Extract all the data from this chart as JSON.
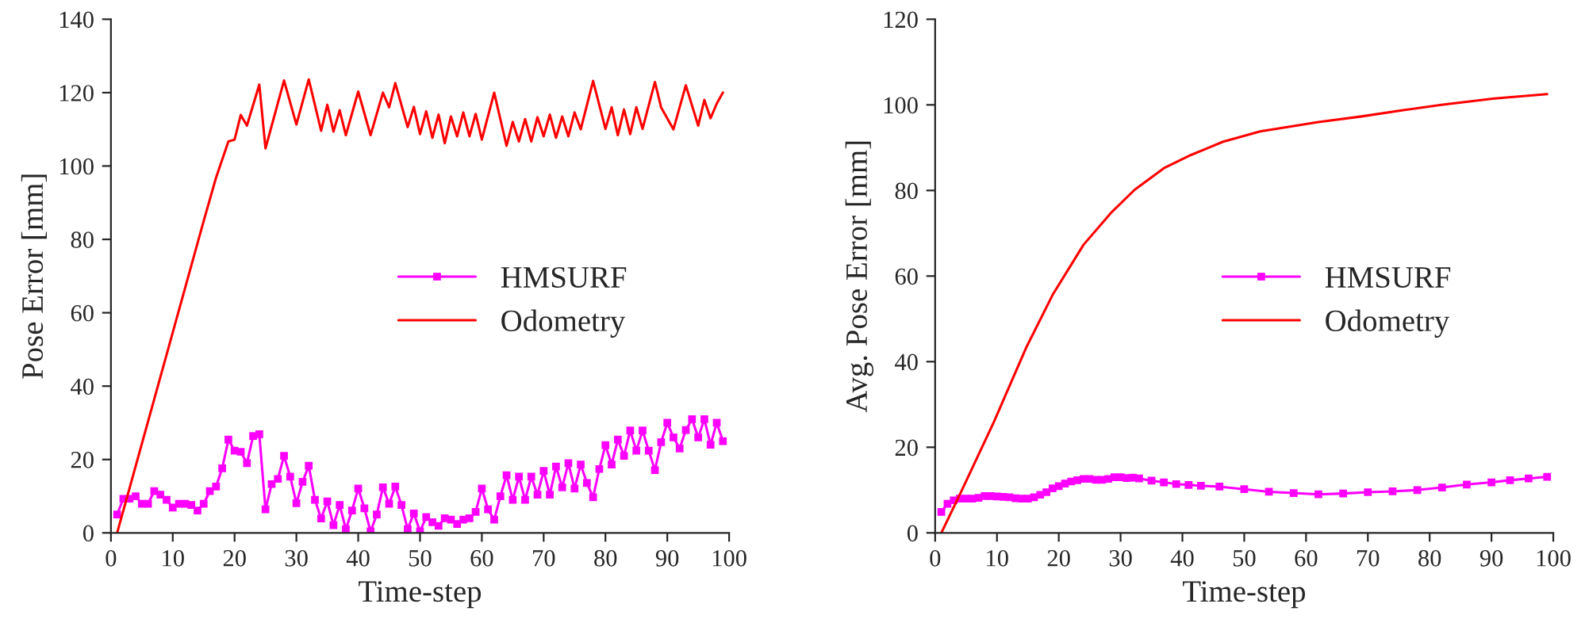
{
  "chart_data": [
    {
      "type": "line",
      "xlabel": "Time-step",
      "ylabel": "Pose Error [mm]",
      "xlim": [
        0,
        100
      ],
      "ylim": [
        0,
        140
      ],
      "xticks": [
        0,
        10,
        20,
        30,
        40,
        50,
        60,
        70,
        80,
        90,
        100
      ],
      "yticks": [
        0,
        20,
        40,
        60,
        80,
        100,
        120,
        140
      ],
      "grid": false,
      "legend": "center right",
      "series": [
        {
          "name": "HMSURF",
          "color": "#ff00ff",
          "marker": "square",
          "x": [
            1,
            2,
            3,
            4,
            5,
            6,
            7,
            8,
            9,
            10,
            11,
            12,
            13,
            14,
            15,
            16,
            17,
            18,
            19,
            20,
            21,
            22,
            23,
            24,
            25,
            26,
            27,
            28,
            29,
            30,
            31,
            32,
            33,
            34,
            35,
            36,
            37,
            38,
            39,
            40,
            41,
            42,
            43,
            44,
            45,
            46,
            47,
            48,
            49,
            50,
            51,
            52,
            53,
            54,
            55,
            56,
            57,
            58,
            59,
            60,
            61,
            62,
            63,
            64,
            65,
            66,
            67,
            68,
            69,
            70,
            71,
            72,
            73,
            74,
            75,
            76,
            77,
            78,
            79,
            80,
            81,
            82,
            83,
            84,
            85,
            86,
            87,
            88,
            89,
            90,
            91,
            92,
            93,
            94,
            95,
            96,
            97,
            98,
            99
          ],
          "values": [
            5,
            9.3,
            9.3,
            10,
            7.9,
            7.9,
            11.4,
            10.4,
            9,
            6.9,
            7.9,
            7.9,
            7.6,
            6.1,
            7.9,
            11.4,
            12.6,
            17.6,
            25.4,
            22.4,
            22.1,
            19,
            26.4,
            26.9,
            6.4,
            13.3,
            14.7,
            21,
            15.3,
            8.1,
            13.9,
            18.3,
            9,
            3.9,
            8.6,
            2.1,
            7.6,
            1,
            6.1,
            12.1,
            6.7,
            0.4,
            5,
            12.4,
            7.9,
            12.6,
            7.6,
            1,
            5.3,
            0.4,
            4.3,
            2.9,
            1.9,
            4,
            3.6,
            2.4,
            3.6,
            4,
            5.7,
            12.1,
            6.4,
            3.6,
            10,
            15.7,
            9,
            15.3,
            9,
            15.3,
            10.4,
            16.9,
            10.4,
            18.1,
            12.4,
            19,
            12.1,
            18.6,
            13.6,
            9.7,
            17.4,
            23.9,
            18.6,
            25.4,
            21,
            27.9,
            22.4,
            27.9,
            22.4,
            17.1,
            24.7,
            30,
            26,
            23,
            28,
            31,
            26,
            31,
            24,
            30,
            25
          ]
        },
        {
          "name": "Odometry",
          "color": "#ff0000",
          "marker": "none",
          "x": [
            1,
            15,
            17,
            19,
            20,
            21,
            22,
            24,
            25,
            28,
            30,
            32,
            34,
            35,
            36,
            37,
            38,
            40,
            42,
            44,
            45,
            46,
            48,
            49,
            50,
            51,
            52,
            53,
            54,
            55,
            56,
            57,
            58,
            59,
            60,
            62,
            64,
            65,
            66,
            67,
            68,
            69,
            70,
            71,
            72,
            73,
            74,
            75,
            76,
            78,
            80,
            81,
            82,
            83,
            84,
            85,
            86,
            88,
            89,
            91,
            93,
            95,
            96,
            97,
            98,
            99
          ],
          "values": [
            0,
            85,
            96.8,
            106.7,
            107.2,
            113.9,
            111,
            122.2,
            104.8,
            123.3,
            111.3,
            123.6,
            109.6,
            116.7,
            109.4,
            115.2,
            108.4,
            120.3,
            108.4,
            120,
            116,
            122.6,
            110.6,
            116.1,
            108.7,
            114.9,
            107.7,
            114,
            106.2,
            113.5,
            108.1,
            114.6,
            108.1,
            114.2,
            107.2,
            120,
            105.5,
            112,
            106.7,
            112.8,
            106.7,
            113.3,
            108.1,
            114,
            107.7,
            113.5,
            108.1,
            114.6,
            110,
            123.2,
            110.1,
            116,
            108.4,
            115.4,
            108.7,
            116,
            110.1,
            122.9,
            116,
            110,
            122,
            111,
            118,
            113,
            117,
            120
          ]
        }
      ]
    },
    {
      "type": "line",
      "xlabel": "Time-step",
      "ylabel": "Avg. Pose Error [mm]",
      "xlim": [
        0,
        100
      ],
      "ylim": [
        0,
        120
      ],
      "xticks": [
        0,
        10,
        20,
        30,
        40,
        50,
        60,
        70,
        80,
        90,
        100
      ],
      "yticks": [
        0,
        20,
        40,
        60,
        80,
        100,
        120
      ],
      "grid": false,
      "legend": "center right",
      "series": [
        {
          "name": "HMSURF",
          "color": "#ff00ff",
          "marker": "square",
          "x": [
            1,
            2,
            3,
            4,
            5,
            6,
            7,
            8,
            9,
            10,
            11,
            12,
            13,
            14,
            15,
            16,
            17,
            18,
            19,
            20,
            21,
            22,
            23,
            24,
            25,
            26,
            27,
            28,
            29,
            30,
            31,
            32,
            33,
            35,
            37,
            39,
            41,
            43,
            46,
            50,
            54,
            58,
            62,
            66,
            70,
            74,
            78,
            82,
            86,
            90,
            93,
            96,
            99
          ],
          "values": [
            4.9,
            6.8,
            7.6,
            8,
            8,
            8,
            8.2,
            8.6,
            8.6,
            8.5,
            8.4,
            8.3,
            8.1,
            8,
            8,
            8.3,
            8.9,
            9.5,
            10.4,
            10.9,
            11.5,
            12,
            12.3,
            12.6,
            12.6,
            12.4,
            12.4,
            12.6,
            13,
            13,
            12.8,
            12.9,
            12.7,
            12.2,
            11.8,
            11.4,
            11.2,
            11,
            10.8,
            10.2,
            9.6,
            9.3,
            9,
            9.2,
            9.5,
            9.7,
            10,
            10.6,
            11.3,
            11.8,
            12.3,
            12.7,
            13.1
          ]
        },
        {
          "name": "Odometry",
          "color": "#ff0000",
          "marker": "none",
          "x": [
            1,
            4.3,
            9.5,
            14.7,
            19,
            24,
            28.4,
            32.3,
            37,
            41.4,
            46.6,
            52.6,
            62,
            69,
            75.9,
            81.9,
            90.5,
            99
          ],
          "values": [
            0,
            9.9,
            25.9,
            43.2,
            55.6,
            67.3,
            74.7,
            80.2,
            85.2,
            88.3,
            91.4,
            93.8,
            96,
            97.3,
            98.8,
            100,
            101.5,
            102.5
          ]
        }
      ]
    }
  ]
}
